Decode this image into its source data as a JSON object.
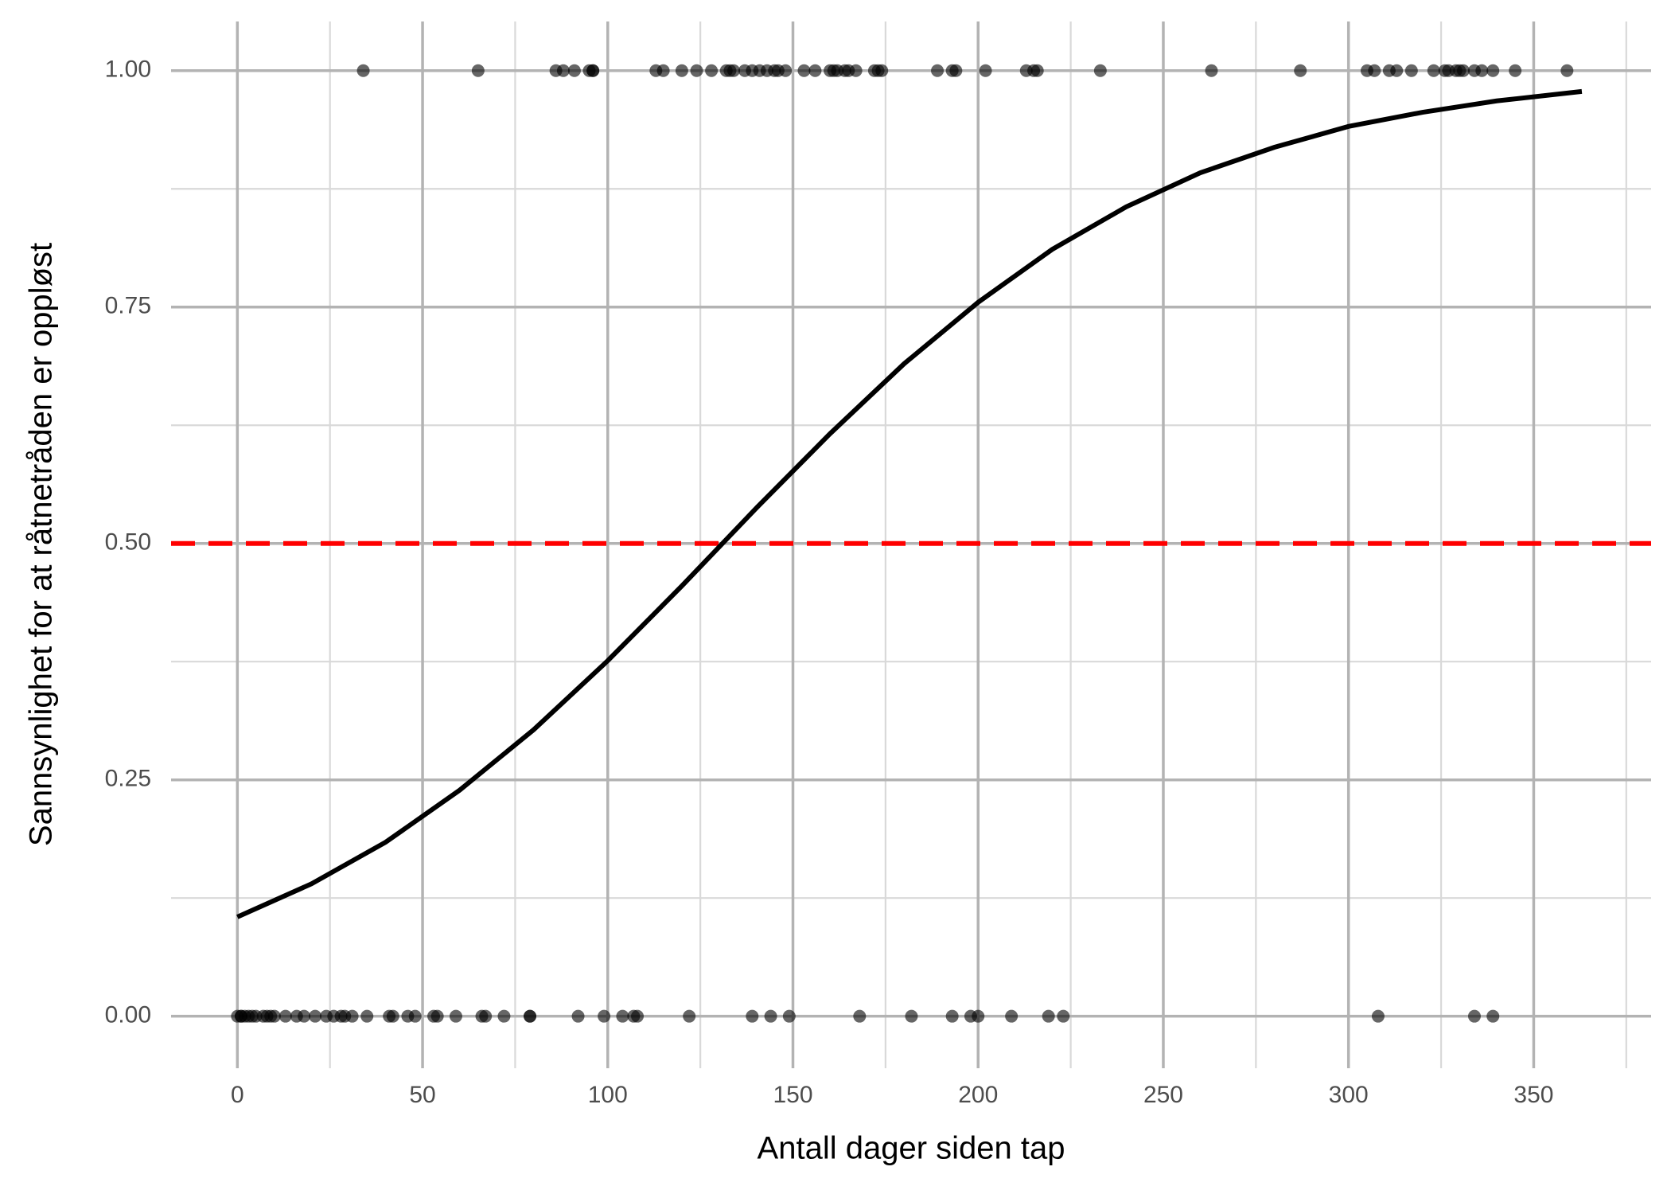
{
  "chart_data": {
    "type": "scatter",
    "x_label": "Antall dager siden tap",
    "y_label": "Sannsynlighet for at råtnetråden er oppløst",
    "xlim": [
      -17.9,
      381.7
    ],
    "ylim": [
      -0.055,
      1.052
    ],
    "xticks": [
      0,
      50,
      100,
      150,
      200,
      250,
      300,
      350
    ],
    "xminorticks": [
      25,
      75,
      125,
      175,
      225,
      275,
      325,
      375
    ],
    "yticks": [
      {
        "value": 0,
        "label": "0.00"
      },
      {
        "value": 0.25,
        "label": "0.25"
      },
      {
        "value": 0.5,
        "label": "0.50"
      },
      {
        "value": 0.75,
        "label": "0.75"
      },
      {
        "value": 1,
        "label": "1.00"
      }
    ],
    "yminorticks": [
      0.125,
      0.375,
      0.625,
      0.875
    ],
    "grid": true,
    "points": {
      "color": "#000000",
      "opacity": 0.6,
      "x": [
        34,
        65,
        86,
        88,
        91,
        95,
        96,
        96,
        113,
        115,
        120,
        124,
        128,
        132,
        133,
        134,
        137,
        139,
        141,
        143,
        145,
        146,
        148,
        153,
        156,
        160,
        161,
        162,
        164,
        165,
        167,
        172,
        173,
        174,
        189,
        193,
        194,
        202,
        213,
        215,
        216,
        233,
        263,
        287,
        305,
        307,
        311,
        313,
        317,
        323,
        326,
        327,
        329,
        330,
        331,
        334,
        336,
        339,
        345,
        359,
        0,
        1,
        1,
        2,
        3,
        4,
        5,
        7,
        8,
        9,
        10,
        13,
        16,
        18,
        21,
        24,
        26,
        28,
        29,
        31,
        35,
        41,
        42,
        46,
        48,
        53,
        54,
        59,
        66,
        67,
        72,
        79,
        79,
        92,
        99,
        104,
        107,
        108,
        122,
        139,
        144,
        149,
        168,
        182,
        193,
        198,
        200,
        209,
        219,
        223,
        308,
        334,
        339
      ],
      "values": [
        1,
        1,
        1,
        1,
        1,
        1,
        1,
        1,
        1,
        1,
        1,
        1,
        1,
        1,
        1,
        1,
        1,
        1,
        1,
        1,
        1,
        1,
        1,
        1,
        1,
        1,
        1,
        1,
        1,
        1,
        1,
        1,
        1,
        1,
        1,
        1,
        1,
        1,
        1,
        1,
        1,
        1,
        1,
        1,
        1,
        1,
        1,
        1,
        1,
        1,
        1,
        1,
        1,
        1,
        1,
        1,
        1,
        1,
        1,
        1,
        0,
        0,
        0,
        0,
        0,
        0,
        0,
        0,
        0,
        0,
        0,
        0,
        0,
        0,
        0,
        0,
        0,
        0,
        0,
        0,
        0,
        0,
        0,
        0,
        0,
        0,
        0,
        0,
        0,
        0,
        0,
        0,
        0,
        0,
        0,
        0,
        0,
        0,
        0,
        0,
        0,
        0,
        0,
        0,
        0,
        0,
        0,
        0,
        0,
        0,
        0,
        0,
        0
      ]
    },
    "curve": {
      "color": "#000000",
      "x": [
        0,
        20,
        40,
        60,
        80,
        100,
        120,
        140,
        160,
        180,
        200,
        220,
        240,
        260,
        280,
        300,
        320,
        340,
        363
      ],
      "values": [
        0.105,
        0.14,
        0.184,
        0.239,
        0.303,
        0.376,
        0.455,
        0.537,
        0.616,
        0.69,
        0.755,
        0.811,
        0.856,
        0.892,
        0.919,
        0.941,
        0.956,
        0.968,
        0.978
      ]
    },
    "reference_line": {
      "value": 0.5,
      "color": "#ff0000"
    }
  }
}
